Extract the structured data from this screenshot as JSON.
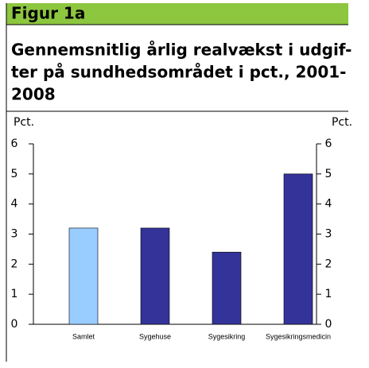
{
  "header": "Figur 1a",
  "chart_data": {
    "type": "bar",
    "title_lines": [
      "Gennemsnitlig årlig realvækst i udgif-",
      "ter på sundhedsområdet i pct., 2001-",
      "2008"
    ],
    "ylabel": "Pct.",
    "y2label": "Pct.",
    "categories": [
      "Samlet",
      "Sygehuse",
      "Sygesikring",
      "Sygesikringsmedicin"
    ],
    "values": [
      3.2,
      3.2,
      2.4,
      5.0
    ],
    "colors": [
      "#99ccff",
      "#333399",
      "#333399",
      "#333399"
    ],
    "ylim": [
      0,
      6
    ],
    "yticks": [
      0,
      1,
      2,
      3,
      4,
      5,
      6
    ],
    "y2lim": [
      0,
      6
    ],
    "y2ticks": [
      0,
      1,
      2,
      3,
      4,
      5,
      6
    ]
  }
}
